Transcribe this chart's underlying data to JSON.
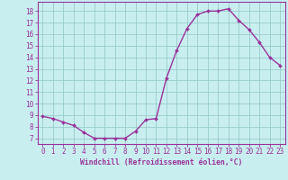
{
  "x": [
    0,
    1,
    2,
    3,
    4,
    5,
    6,
    7,
    8,
    9,
    10,
    11,
    12,
    13,
    14,
    15,
    16,
    17,
    18,
    19,
    20,
    21,
    22,
    23
  ],
  "y": [
    8.9,
    8.7,
    8.4,
    8.1,
    7.5,
    7.0,
    7.0,
    7.0,
    7.0,
    7.6,
    8.6,
    8.7,
    12.2,
    14.6,
    16.5,
    17.7,
    18.0,
    18.0,
    18.2,
    17.2,
    16.4,
    15.3,
    14.0,
    13.3
  ],
  "line_color": "#993399",
  "marker": "D",
  "marker_size": 2.0,
  "bg_color": "#c8eef0",
  "grid_color": "#99cccc",
  "xlabel": "Windchill (Refroidissement éolien,°C)",
  "xlabel_color": "#993399",
  "ylabel_ticks": [
    7,
    8,
    9,
    10,
    11,
    12,
    13,
    14,
    15,
    16,
    17,
    18
  ],
  "ylim": [
    6.5,
    18.8
  ],
  "xlim": [
    -0.5,
    23.5
  ],
  "xticks": [
    0,
    1,
    2,
    3,
    4,
    5,
    6,
    7,
    8,
    9,
    10,
    11,
    12,
    13,
    14,
    15,
    16,
    17,
    18,
    19,
    20,
    21,
    22,
    23
  ],
  "tick_color": "#993399",
  "spine_color": "#993399",
  "tick_fontsize": 5.5,
  "xlabel_fontsize": 5.8,
  "linewidth": 1.0
}
